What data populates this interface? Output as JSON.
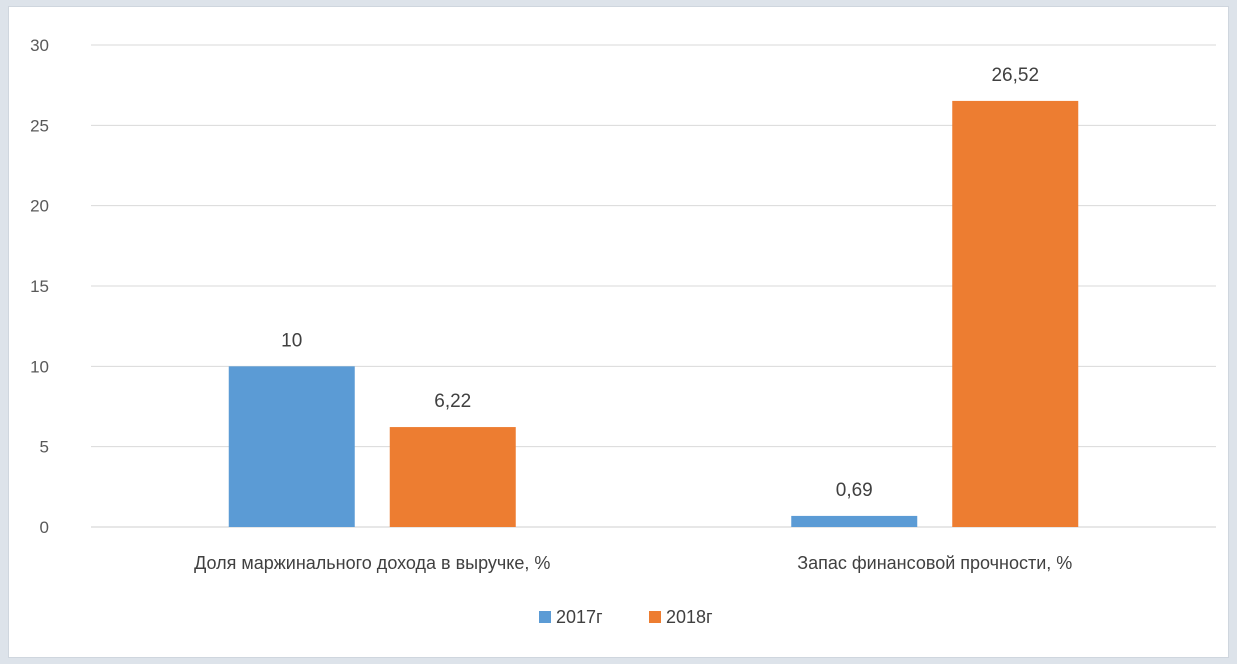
{
  "chart_data": {
    "type": "bar",
    "categories": [
      "Доля маржинального дохода в выручке, %",
      "Запас финансовой прочности, %"
    ],
    "series": [
      {
        "name": "2017г",
        "values": [
          10,
          0.69
        ],
        "labels": [
          "10",
          "0,69"
        ]
      },
      {
        "name": "2018г",
        "values": [
          6.22,
          26.52
        ],
        "labels": [
          "6,22",
          "26,52"
        ]
      }
    ],
    "ylim": [
      0,
      30
    ],
    "yticks": [
      "0",
      "5",
      "10",
      "15",
      "20",
      "25",
      "30"
    ],
    "grid": true,
    "legend": "bottom",
    "colors": [
      "#5b9bd5",
      "#ed7d31"
    ],
    "title": "",
    "xlabel": "",
    "ylabel": ""
  }
}
